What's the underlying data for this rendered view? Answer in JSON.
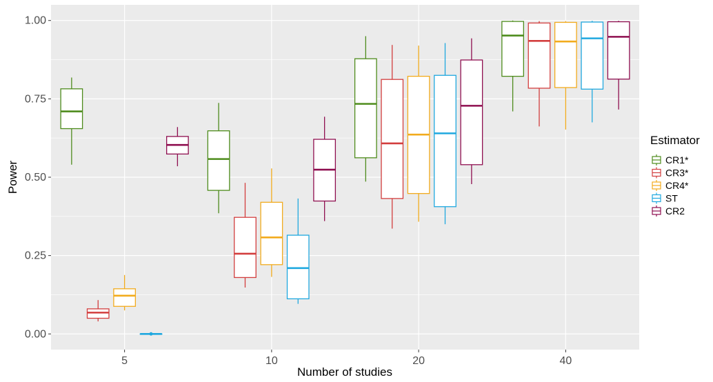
{
  "chart_data": {
    "type": "boxplot",
    "xlabel": "Number of studies",
    "ylabel": "Power",
    "categories": [
      "5",
      "10",
      "20",
      "40"
    ],
    "ylim": [
      -0.05,
      1.05
    ],
    "yticks": [
      0.0,
      0.25,
      0.5,
      0.75,
      1.0
    ],
    "ytick_labels": [
      "0.00",
      "0.25",
      "0.50",
      "0.75",
      "1.00"
    ],
    "grid": true,
    "legend": {
      "title": "Estimator",
      "placement": "right"
    },
    "series": [
      {
        "name": "CR1*",
        "color": "#4d8b1b",
        "boxes": [
          {
            "min": 0.54,
            "q1": 0.655,
            "median": 0.71,
            "q3": 0.782,
            "max": 0.818
          },
          {
            "min": 0.385,
            "q1": 0.458,
            "median": 0.558,
            "q3": 0.648,
            "max": 0.737
          },
          {
            "min": 0.486,
            "q1": 0.562,
            "median": 0.734,
            "q3": 0.878,
            "max": 0.95
          },
          {
            "min": 0.71,
            "q1": 0.822,
            "median": 0.952,
            "q3": 0.997,
            "max": 1.0
          }
        ]
      },
      {
        "name": "CR3*",
        "color": "#d23d3d",
        "boxes": [
          {
            "min": 0.04,
            "q1": 0.05,
            "median": 0.068,
            "q3": 0.08,
            "max": 0.108
          },
          {
            "min": 0.148,
            "q1": 0.18,
            "median": 0.256,
            "q3": 0.372,
            "max": 0.482
          },
          {
            "min": 0.336,
            "q1": 0.432,
            "median": 0.608,
            "q3": 0.812,
            "max": 0.922
          },
          {
            "min": 0.662,
            "q1": 0.784,
            "median": 0.935,
            "q3": 0.992,
            "max": 0.998
          }
        ]
      },
      {
        "name": "CR4*",
        "color": "#f2ab1d",
        "boxes": [
          {
            "min": 0.075,
            "q1": 0.088,
            "median": 0.122,
            "q3": 0.144,
            "max": 0.188
          },
          {
            "min": 0.182,
            "q1": 0.221,
            "median": 0.308,
            "q3": 0.42,
            "max": 0.528
          },
          {
            "min": 0.358,
            "q1": 0.448,
            "median": 0.636,
            "q3": 0.822,
            "max": 0.92
          },
          {
            "min": 0.652,
            "q1": 0.786,
            "median": 0.933,
            "q3": 0.994,
            "max": 0.998
          }
        ]
      },
      {
        "name": "ST",
        "color": "#1fa8df",
        "boxes": [
          {
            "min": 0.0,
            "q1": 0.0,
            "median": 0.0,
            "q3": 0.0,
            "max": 0.0
          },
          {
            "min": 0.096,
            "q1": 0.112,
            "median": 0.21,
            "q3": 0.315,
            "max": 0.432
          },
          {
            "min": 0.35,
            "q1": 0.406,
            "median": 0.64,
            "q3": 0.825,
            "max": 0.928
          },
          {
            "min": 0.675,
            "q1": 0.781,
            "median": 0.943,
            "q3": 0.995,
            "max": 0.999
          }
        ]
      },
      {
        "name": "CR2",
        "color": "#8e0e4f",
        "boxes": [
          {
            "min": 0.535,
            "q1": 0.574,
            "median": 0.603,
            "q3": 0.63,
            "max": 0.66
          },
          {
            "min": 0.36,
            "q1": 0.424,
            "median": 0.524,
            "q3": 0.621,
            "max": 0.693
          },
          {
            "min": 0.478,
            "q1": 0.54,
            "median": 0.728,
            "q3": 0.874,
            "max": 0.943
          },
          {
            "min": 0.716,
            "q1": 0.813,
            "median": 0.948,
            "q3": 0.996,
            "max": 0.999
          }
        ]
      }
    ]
  }
}
